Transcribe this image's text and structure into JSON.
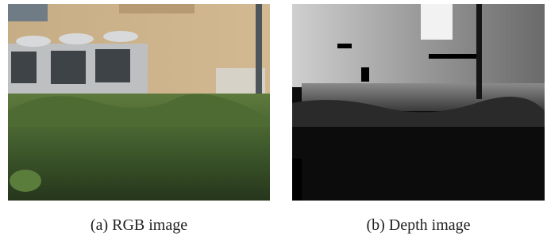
{
  "figure": {
    "panels": [
      {
        "caption": "(a) RGB image"
      },
      {
        "caption": "(b) Depth image"
      }
    ]
  }
}
